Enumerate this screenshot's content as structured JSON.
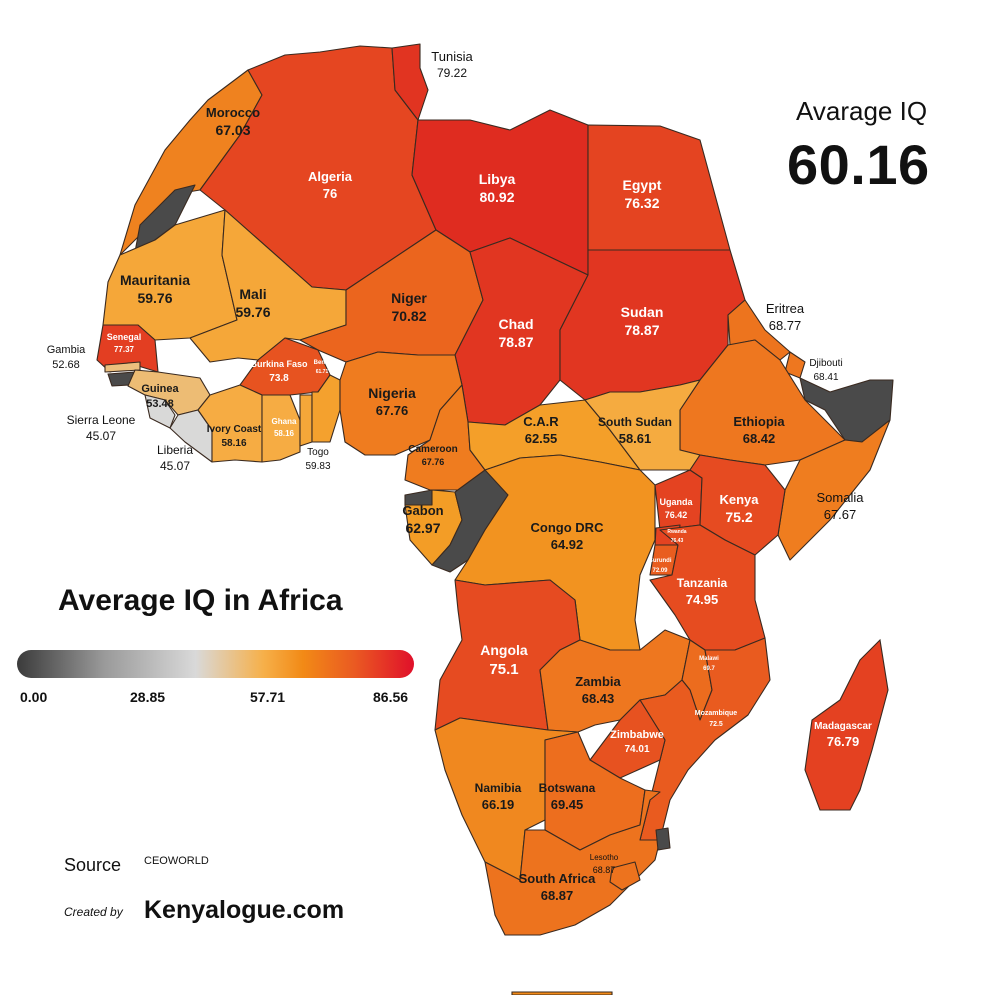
{
  "map_title": "Average IQ in Africa",
  "average": {
    "label": "Avarage IQ",
    "value": "60.16"
  },
  "legend": {
    "ticks": [
      "0.00",
      "28.85",
      "57.71",
      "86.56"
    ],
    "min": 0,
    "max": 86.56,
    "colors": [
      "#3b3b3b",
      "#d9d9d9",
      "#f28a16",
      "#e0102a"
    ]
  },
  "credits": {
    "source_label": "Source",
    "source_value": "CEOWORLD",
    "created_label": "Created by",
    "created_value": "Kenyalogue.com"
  },
  "countries": [
    {
      "id": "tunisia",
      "name": "Tunisia",
      "value": "79.22"
    },
    {
      "id": "morocco",
      "name": "Morocco",
      "value": "67.03"
    },
    {
      "id": "algeria",
      "name": "Algeria",
      "value": "76"
    },
    {
      "id": "libya",
      "name": "Libya",
      "value": "80.92"
    },
    {
      "id": "egypt",
      "name": "Egypt",
      "value": "76.32"
    },
    {
      "id": "mauritania",
      "name": "Mauritania",
      "value": "59.76"
    },
    {
      "id": "mali",
      "name": "Mali",
      "value": "59.76"
    },
    {
      "id": "niger",
      "name": "Niger",
      "value": "70.82"
    },
    {
      "id": "chad",
      "name": "Chad",
      "value": "78.87"
    },
    {
      "id": "sudan",
      "name": "Sudan",
      "value": "78.87"
    },
    {
      "id": "eritrea",
      "name": "Eritrea",
      "value": "68.77"
    },
    {
      "id": "djibouti",
      "name": "Djibouti",
      "value": "68.41"
    },
    {
      "id": "senegal",
      "name": "Senegal",
      "value": "77.37"
    },
    {
      "id": "gambia",
      "name": "Gambia",
      "value": "52.68"
    },
    {
      "id": "guinea",
      "name": "Guinea",
      "value": "53.48"
    },
    {
      "id": "sierra_leone",
      "name": "Sierra Leone",
      "value": "45.07"
    },
    {
      "id": "liberia",
      "name": "Liberia",
      "value": "45.07"
    },
    {
      "id": "burkina_faso",
      "name": "Burkina Faso",
      "value": "73.8"
    },
    {
      "id": "ivory_coast",
      "name": "Ivory Coast",
      "value": "58.16"
    },
    {
      "id": "ghana",
      "name": "Ghana",
      "value": "58.16"
    },
    {
      "id": "togo",
      "name": "Togo",
      "value": "59.83"
    },
    {
      "id": "benin",
      "name": "Benin",
      "value": "61.71"
    },
    {
      "id": "nigeria",
      "name": "Nigeria",
      "value": "67.76"
    },
    {
      "id": "cameroon",
      "name": "Cameroon",
      "value": "67.76"
    },
    {
      "id": "car",
      "name": "C.A.R",
      "value": "62.55"
    },
    {
      "id": "south_sudan",
      "name": "South Sudan",
      "value": "58.61"
    },
    {
      "id": "ethiopia",
      "name": "Ethiopia",
      "value": "68.42"
    },
    {
      "id": "somalia",
      "name": "Somalia",
      "value": "67.67"
    },
    {
      "id": "gabon",
      "name": "Gabon",
      "value": "62.97"
    },
    {
      "id": "congo_drc",
      "name": "Congo DRC",
      "value": "64.92"
    },
    {
      "id": "uganda",
      "name": "Uganda",
      "value": "76.42"
    },
    {
      "id": "kenya",
      "name": "Kenya",
      "value": "75.2"
    },
    {
      "id": "rwanda",
      "name": "Rwanda",
      "value": "76.43"
    },
    {
      "id": "burundi",
      "name": "Burundi",
      "value": "72.09"
    },
    {
      "id": "tanzania",
      "name": "Tanzania",
      "value": "74.95"
    },
    {
      "id": "angola",
      "name": "Angola",
      "value": "75.1"
    },
    {
      "id": "zambia",
      "name": "Zambia",
      "value": "68.43"
    },
    {
      "id": "malawi",
      "name": "Malawi",
      "value": "69.7"
    },
    {
      "id": "mozambique",
      "name": "Mozambique",
      "value": "72.5"
    },
    {
      "id": "zimbabwe",
      "name": "Zimbabwe",
      "value": "74.01"
    },
    {
      "id": "madagascar",
      "name": "Madagascar",
      "value": "76.79"
    },
    {
      "id": "namibia",
      "name": "Namibia",
      "value": "66.19"
    },
    {
      "id": "botswana",
      "name": "Botswana",
      "value": "69.45"
    },
    {
      "id": "lesotho",
      "name": "Lesotho",
      "value": "68.87"
    },
    {
      "id": "south_africa",
      "name": "South Africa",
      "value": "68.87"
    }
  ]
}
